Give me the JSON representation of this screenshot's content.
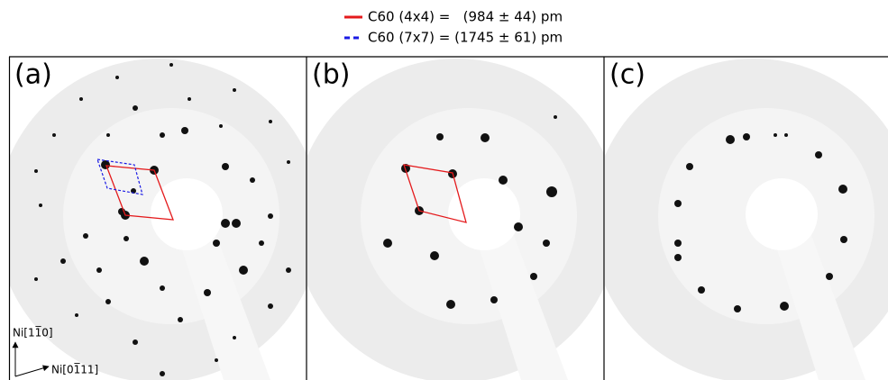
{
  "legend": [
    {
      "label": "C60 (4x4) =   (984 ± 44) pm",
      "color": "#e41a1c",
      "style": "solid"
    },
    {
      "label": "C60 (7x7) = (1745 ± 61) pm",
      "color": "#1a1ae4",
      "style": "dashed"
    }
  ],
  "panels": [
    {
      "label": "(a)"
    },
    {
      "label": "(b)"
    },
    {
      "label": "(c)"
    }
  ],
  "directions": [
    "Ni[11̅0]",
    "Ni[01̅11]"
  ]
}
